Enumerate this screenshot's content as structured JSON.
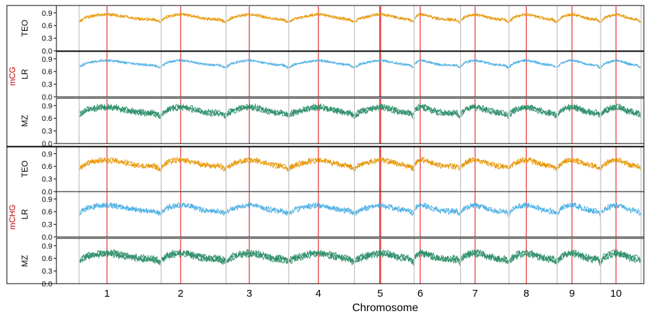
{
  "chart_data": {
    "type": "line",
    "xlabel": "Chromosome",
    "chromosomes": [
      "1",
      "2",
      "3",
      "4",
      "5",
      "6",
      "7",
      "8",
      "9",
      "10"
    ],
    "y_ticks": [
      "0.0",
      "0.3",
      "0.6",
      "0.9"
    ],
    "ylim": [
      0,
      1.0
    ],
    "groups": [
      {
        "label": "mCG",
        "label_color": "#c00000"
      },
      {
        "label": "mCHG",
        "label_color": "#c00000"
      }
    ],
    "panels": [
      {
        "group": "mCG",
        "name": "TEO",
        "color": "#E69500",
        "arm": 0.86,
        "centro": 0.74,
        "spread": 0.03
      },
      {
        "group": "mCG",
        "name": "LR",
        "color": "#4AAEE3",
        "arm": 0.86,
        "centro": 0.75,
        "spread": 0.025
      },
      {
        "group": "mCG",
        "name": "MZ",
        "color": "#2E8F6A",
        "arm": 0.86,
        "centro": 0.72,
        "spread": 0.06
      },
      {
        "group": "mCHG",
        "name": "TEO",
        "color": "#E69500",
        "arm": 0.75,
        "centro": 0.6,
        "spread": 0.06
      },
      {
        "group": "mCHG",
        "name": "LR",
        "color": "#4AAEE3",
        "arm": 0.75,
        "centro": 0.61,
        "spread": 0.06
      },
      {
        "group": "mCHG",
        "name": "MZ",
        "color": "#2E8F6A",
        "arm": 0.72,
        "centro": 0.58,
        "spread": 0.07
      }
    ],
    "centromeres": [
      0.34,
      0.3,
      0.37,
      0.45,
      0.43,
      0.13,
      0.3,
      0.36,
      0.34,
      0.38
    ],
    "chromosome_lengths": [
      308,
      244,
      235,
      247,
      224,
      174,
      182,
      181,
      163,
      152
    ]
  }
}
